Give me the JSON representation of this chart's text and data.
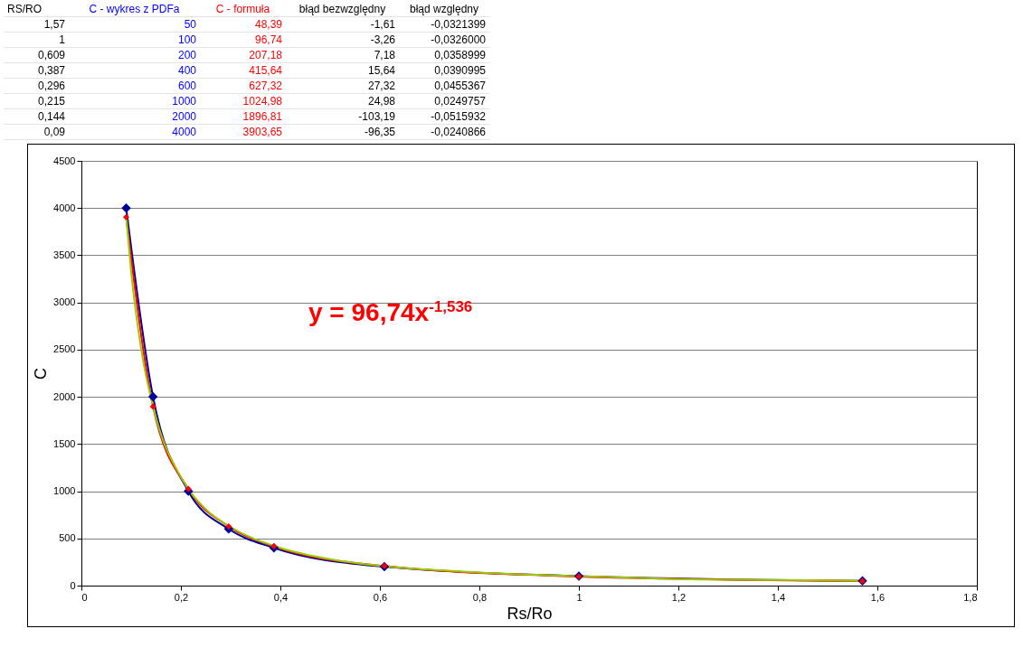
{
  "chart_data": [
    {
      "type": "other",
      "annotations": [
        "RS/RO",
        "C - wykres z PDFa",
        "C - formuła",
        "błąd bezwzględny",
        "błąd względny",
        "1,57",
        "50",
        "48,39",
        "-1,61",
        "-0,0321399",
        "1",
        "100",
        "96,74",
        "-3,26",
        "-0,0326000",
        "0,609",
        "200",
        "207,18",
        "7,18",
        "0,0358999",
        "0,387",
        "400",
        "415,64",
        "15,64",
        "0,0390995",
        "0,296",
        "600",
        "627,32",
        "27,32",
        "0,0455367",
        "0,215",
        "1000",
        "1024,98",
        "24,98",
        "0,0249757",
        "0,144",
        "2000",
        "1896,81",
        "-103,19",
        "-0,0515932",
        "0,09",
        "4000",
        "3903,65",
        "-96,35",
        "-0,0240866"
      ]
    },
    {
      "type": "line",
      "xlabel": "Rs/Ro",
      "ylabel": "C",
      "x": [
        1.57,
        1,
        0.609,
        0.387,
        0.296,
        0.215,
        0.144,
        0.09
      ],
      "series": [
        {
          "color": "#000099",
          "values": [
            50,
            100,
            200,
            400,
            600,
            1000,
            2000,
            4000
          ]
        },
        {
          "color": "#ff0000",
          "values": [
            48.39,
            96.74,
            207.18,
            415.64,
            627.32,
            1024.98,
            1896.81,
            3903.65
          ]
        },
        {
          "type": "line",
          "color": "#99cc00",
          "marker": "none",
          "x": [
            0.09,
            0.1,
            0.12,
            0.15,
            0.2,
            0.25,
            0.3,
            0.4,
            0.5,
            0.6,
            0.8,
            1,
            1.2,
            1.4,
            1.57
          ],
          "values": [
            3910,
            3320,
            2510,
            1780,
            1150,
            810,
            620,
            400,
            280,
            210,
            140,
            100,
            70,
            60,
            50
          ]
        }
      ],
      "xlim": [
        0,
        1.8
      ],
      "xticks": [
        0,
        {
          "value": 0.2,
          "label": "0,2"
        },
        {
          "value": 0.4,
          "label": "0,4"
        },
        {
          "value": 0.6,
          "label": "0,6"
        },
        {
          "value": 0.8,
          "label": "0,8"
        },
        1,
        {
          "value": 1.2,
          "label": "1,2"
        },
        {
          "value": 1.4,
          "label": "1,4"
        },
        {
          "value": 1.6,
          "label": "1,6"
        },
        {
          "value": 1.8,
          "label": "1,8"
        }
      ],
      "ylim": [
        0,
        4500
      ],
      "yticks": [
        0,
        500,
        1000,
        1500,
        2000,
        2500,
        3000,
        3500,
        4000,
        4500
      ],
      "grid": "y",
      "marker": "diamond",
      "line_style": "solid",
      "annotations": [
        "y = 96,74x$^{-1,536}$"
      ]
    }
  ]
}
